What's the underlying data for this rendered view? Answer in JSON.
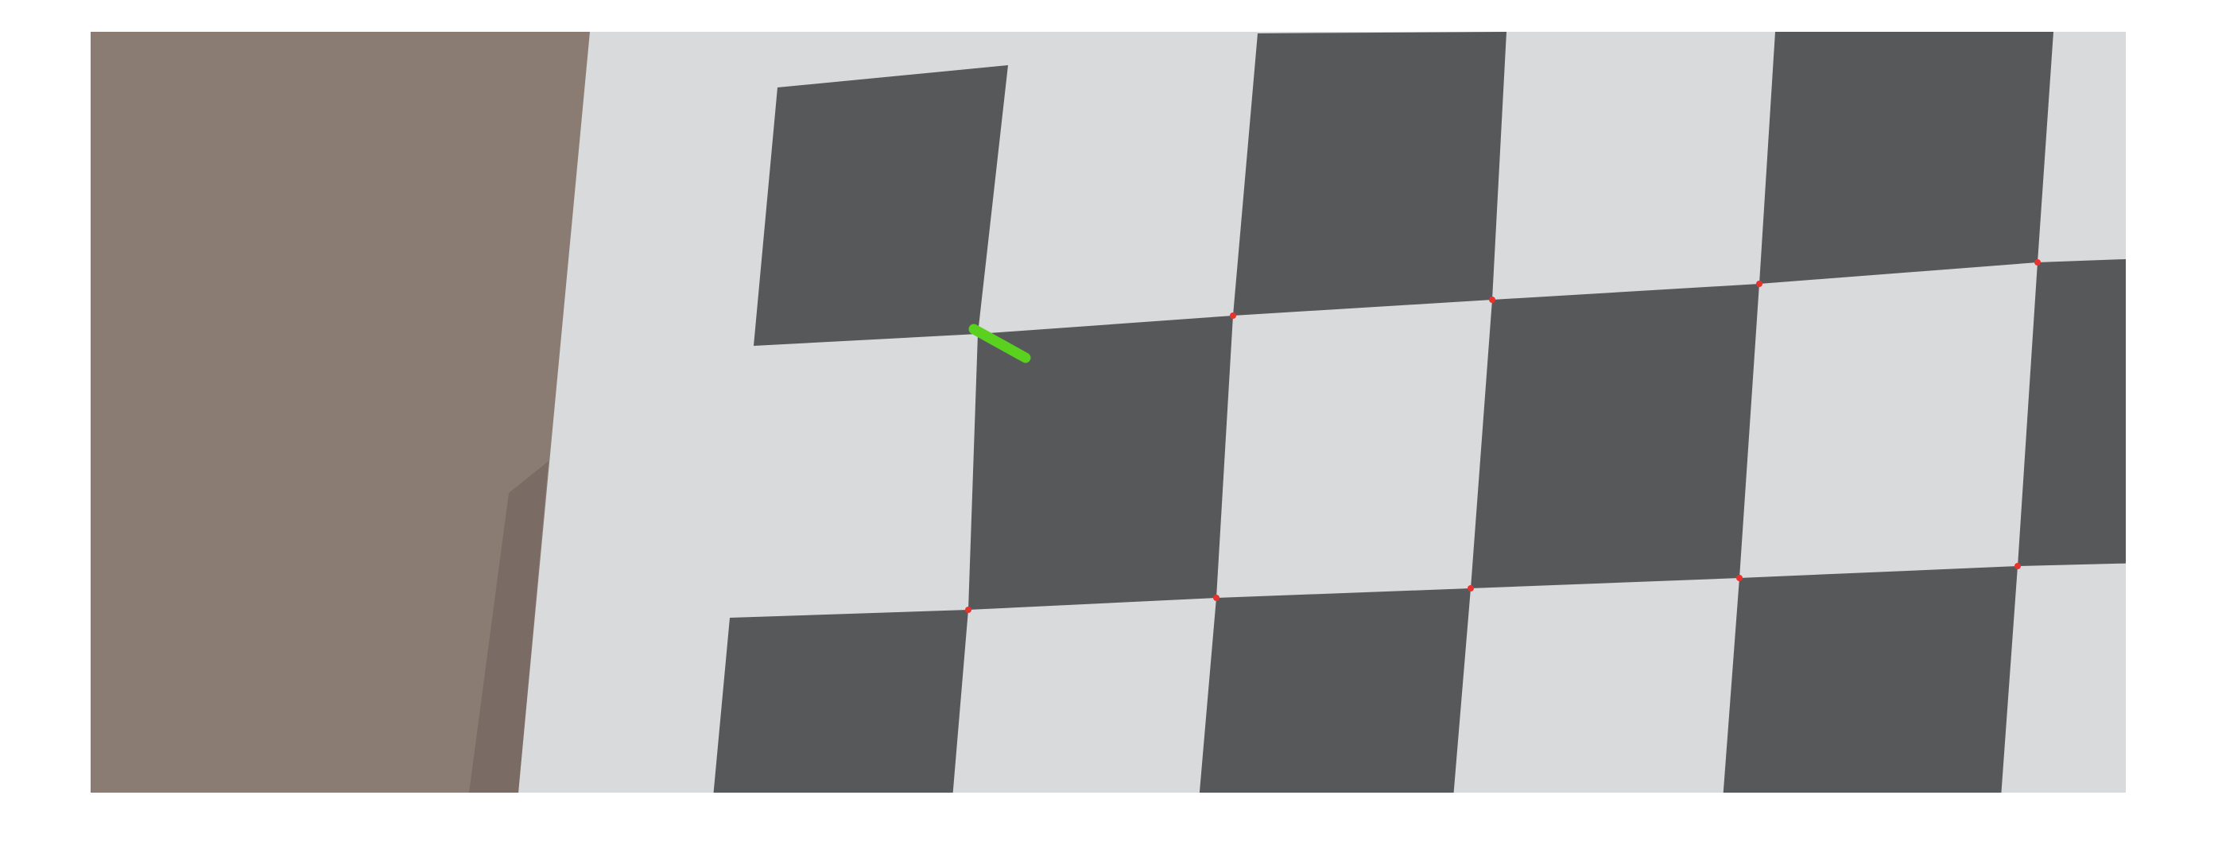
{
  "image": {
    "subject": "checkerboard-calibration-photo",
    "colors": {
      "page_background": "#ffffff",
      "cardboard": "#8b7c73",
      "cardboard_shadow": "#7a6c64",
      "paper": "#d9dadc",
      "paper_edge": "#e6e6e8",
      "dark_square": "#57585a",
      "corner_marker": "#e8322e",
      "detection_line": "#5ad11e"
    }
  }
}
